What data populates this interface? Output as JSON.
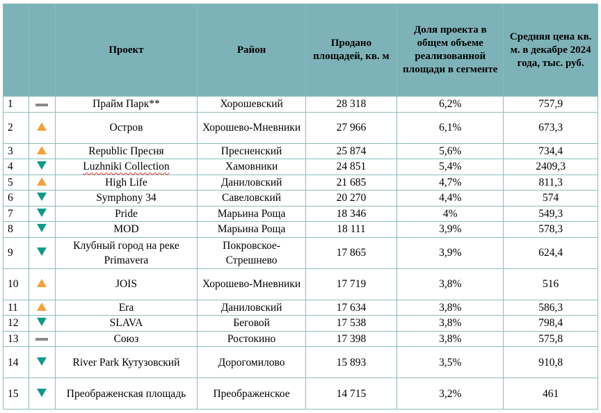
{
  "headers": {
    "rank": "",
    "trend": "",
    "project": "Проект",
    "district": "Район",
    "sold": "Продано площадей, кв. м",
    "share": "Доля проекта в общем объеме реализованной площади в сегменте",
    "price": "Средняя цена кв. м. в декабре 2024 года, тыс. руб."
  },
  "colors": {
    "header_bg": "#7db3b8",
    "up": "#f4a13a",
    "down": "#0e9a86",
    "flat": "#8a8a8a",
    "grid": "#8cbcbc"
  },
  "rows": [
    {
      "rank": "1",
      "trend": "flat",
      "project": "Прайм Парк**",
      "district": "Хорошевский",
      "sold": "28 318",
      "share": "6,2%",
      "price": "757,9"
    },
    {
      "rank": "2",
      "trend": "up",
      "project": "Остров",
      "district": "Хорошево-Мневники",
      "sold": "27 966",
      "share": "6,1%",
      "price": "673,3"
    },
    {
      "rank": "3",
      "trend": "up",
      "project": "Republic Пресня",
      "district": "Пресненский",
      "sold": "25 874",
      "share": "5,6%",
      "price": "734,4"
    },
    {
      "rank": "4",
      "trend": "down",
      "project": "Luzhniki Collection",
      "district": "Хамовники",
      "sold": "24 851",
      "share": "5,4%",
      "price": "2409,3"
    },
    {
      "rank": "5",
      "trend": "up",
      "project": "High Life",
      "district": "Даниловский",
      "sold": "21 685",
      "share": "4,7%",
      "price": "811,3"
    },
    {
      "rank": "6",
      "trend": "down",
      "project": "Symphony 34",
      "district": "Савеловский",
      "sold": "20 270",
      "share": "4,4%",
      "price": "574"
    },
    {
      "rank": "7",
      "trend": "down",
      "project": "Pride",
      "district": "Марьина Роща",
      "sold": "18 346",
      "share": "4%",
      "price": "549,3"
    },
    {
      "rank": "8",
      "trend": "down",
      "project": "MOD",
      "district": "Марьина Роща",
      "sold": "18 111",
      "share": "3,9%",
      "price": "578,3"
    },
    {
      "rank": "9",
      "trend": "down",
      "project": "Клубный город на реке Primavera",
      "district": "Покровское-Стрешнево",
      "sold": "17 865",
      "share": "3,9%",
      "price": "624,4"
    },
    {
      "rank": "10",
      "trend": "up",
      "project": "JOIS",
      "district": "Хорошево-Мневники",
      "sold": "17 719",
      "share": "3,8%",
      "price": "516"
    },
    {
      "rank": "11",
      "trend": "up",
      "project": "Era",
      "district": "Даниловский",
      "sold": "17 634",
      "share": "3,8%",
      "price": "586,3"
    },
    {
      "rank": "12",
      "trend": "down",
      "project": "SLAVA",
      "district": "Беговой",
      "sold": "17 538",
      "share": "3,8%",
      "price": "798,4"
    },
    {
      "rank": "13",
      "trend": "flat",
      "project": "Союз",
      "district": "Ростокино",
      "sold": "17 398",
      "share": "3,8%",
      "price": "575,8"
    },
    {
      "rank": "14",
      "trend": "down",
      "project": "River Park Кутузовский",
      "district": "Дорогомилово",
      "sold": "15 893",
      "share": "3,5%",
      "price": "910,8"
    },
    {
      "rank": "15",
      "trend": "down",
      "project": "Преображенская площадь",
      "district": "Преображенское",
      "sold": "14 715",
      "share": "3,2%",
      "price": "461"
    }
  ]
}
